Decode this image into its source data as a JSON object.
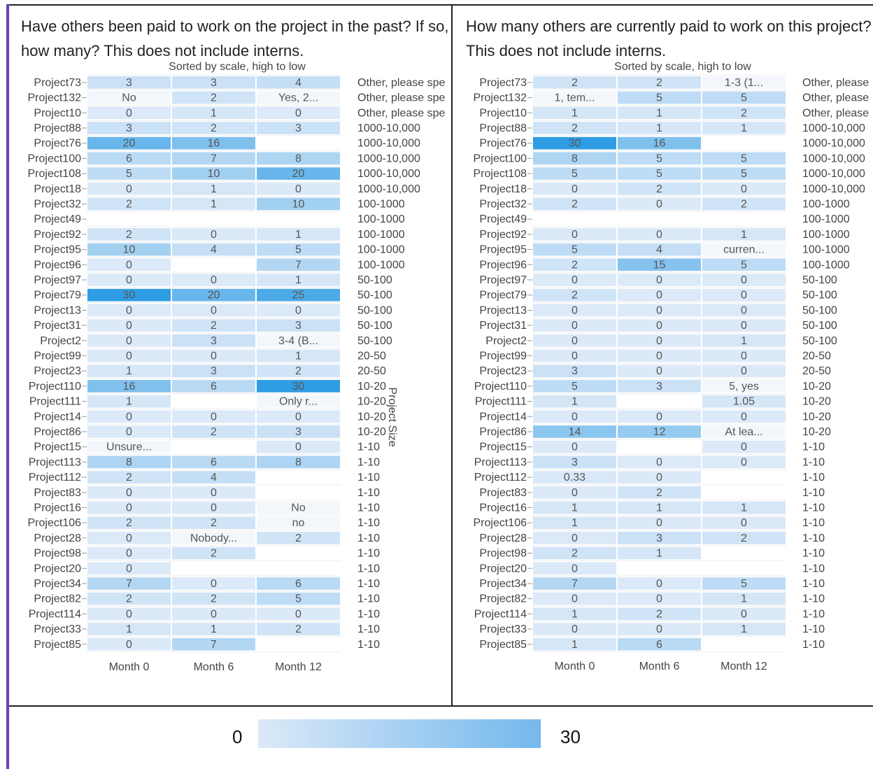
{
  "colorscale": {
    "low": "#dbe9f8",
    "high": "#2f9de4",
    "min": 0,
    "max": 30
  },
  "legend": {
    "min_label": "0",
    "max_label": "30"
  },
  "side_axis_label": "Project Size",
  "chart_data": [
    {
      "type": "heatmap",
      "title": "Have others been paid to work on the project in the past? If so, how many? This does not include interns.",
      "subtitle": "Sorted by scale, high to low",
      "columns": [
        "Month 0",
        "Month 6",
        "Month 12"
      ],
      "rows": [
        "Project73",
        "Project132",
        "Project10",
        "Project88",
        "Project76",
        "Project100",
        "Project108",
        "Project18",
        "Project32",
        "Project49",
        "Project92",
        "Project95",
        "Project96",
        "Project97",
        "Project79",
        "Project13",
        "Project31",
        "Project2",
        "Project99",
        "Project23",
        "Project110",
        "Project111",
        "Project14",
        "Project86",
        "Project15",
        "Project113",
        "Project112",
        "Project83",
        "Project16",
        "Project106",
        "Project28",
        "Project98",
        "Project20",
        "Project34",
        "Project82",
        "Project114",
        "Project33",
        "Project85"
      ],
      "cells": [
        [
          "3",
          "3",
          "4"
        ],
        [
          "No",
          "2",
          "Yes, 2..."
        ],
        [
          "0",
          "1",
          "0"
        ],
        [
          "3",
          "2",
          "3"
        ],
        [
          "20",
          "16",
          ""
        ],
        [
          "6",
          "7",
          "8"
        ],
        [
          "5",
          "10",
          "20"
        ],
        [
          "0",
          "1",
          "0"
        ],
        [
          "2",
          "1",
          "10"
        ],
        [
          "",
          "",
          ""
        ],
        [
          "2",
          "0",
          "1"
        ],
        [
          "10",
          "4",
          "5"
        ],
        [
          "0",
          "",
          "7"
        ],
        [
          "0",
          "0",
          "1"
        ],
        [
          "30",
          "20",
          "25"
        ],
        [
          "0",
          "0",
          "0"
        ],
        [
          "0",
          "2",
          "3"
        ],
        [
          "0",
          "3",
          "3-4 (B..."
        ],
        [
          "0",
          "0",
          "1"
        ],
        [
          "1",
          "3",
          "2"
        ],
        [
          "16",
          "6",
          "30"
        ],
        [
          "1",
          "",
          "Only r..."
        ],
        [
          "0",
          "0",
          "0"
        ],
        [
          "0",
          "2",
          "3"
        ],
        [
          "Unsure...",
          "",
          "0"
        ],
        [
          "8",
          "6",
          "8"
        ],
        [
          "2",
          "4",
          ""
        ],
        [
          "0",
          "0",
          ""
        ],
        [
          "0",
          "0",
          "No"
        ],
        [
          "2",
          "2",
          "no"
        ],
        [
          "0",
          "Nobody...",
          "2"
        ],
        [
          "0",
          "2",
          ""
        ],
        [
          "0",
          "",
          ""
        ],
        [
          "7",
          "0",
          "6"
        ],
        [
          "2",
          "2",
          "5"
        ],
        [
          "0",
          "0",
          "0"
        ],
        [
          "1",
          "1",
          "2"
        ],
        [
          "0",
          "7",
          ""
        ]
      ],
      "project_size": [
        "Other, please spe",
        "Other, please spe",
        "Other, please spe",
        "1000-10,000",
        "1000-10,000",
        "1000-10,000",
        "1000-10,000",
        "1000-10,000",
        "100-1000",
        "100-1000",
        "100-1000",
        "100-1000",
        "100-1000",
        "50-100",
        "50-100",
        "50-100",
        "50-100",
        "50-100",
        "20-50",
        "20-50",
        "10-20",
        "10-20",
        "10-20",
        "10-20",
        "1-10",
        "1-10",
        "1-10",
        "1-10",
        "1-10",
        "1-10",
        "1-10",
        "1-10",
        "1-10",
        "1-10",
        "1-10",
        "1-10",
        "1-10",
        "1-10"
      ]
    },
    {
      "type": "heatmap",
      "title": "How many others are currently paid to work on this project? This does not include interns.",
      "subtitle": "Sorted by scale, high to low",
      "columns": [
        "Month 0",
        "Month 6",
        "Month 12"
      ],
      "rows": [
        "Project73",
        "Project132",
        "Project10",
        "Project88",
        "Project76",
        "Project100",
        "Project108",
        "Project18",
        "Project32",
        "Project49",
        "Project92",
        "Project95",
        "Project96",
        "Project97",
        "Project79",
        "Project13",
        "Project31",
        "Project2",
        "Project99",
        "Project23",
        "Project110",
        "Project111",
        "Project14",
        "Project86",
        "Project15",
        "Project113",
        "Project112",
        "Project83",
        "Project16",
        "Project106",
        "Project28",
        "Project98",
        "Project20",
        "Project34",
        "Project82",
        "Project114",
        "Project33",
        "Project85"
      ],
      "cells": [
        [
          "2",
          "2",
          "1-3 (1..."
        ],
        [
          "1, tem...",
          "5",
          "5"
        ],
        [
          "1",
          "1",
          "2"
        ],
        [
          "2",
          "1",
          "1"
        ],
        [
          "30",
          "16",
          ""
        ],
        [
          "8",
          "5",
          "5"
        ],
        [
          "5",
          "5",
          "5"
        ],
        [
          "0",
          "2",
          "0"
        ],
        [
          "2",
          "0",
          "2"
        ],
        [
          "",
          "",
          ""
        ],
        [
          "0",
          "0",
          "1"
        ],
        [
          "5",
          "4",
          "curren..."
        ],
        [
          "2",
          "15",
          "5"
        ],
        [
          "0",
          "0",
          "0"
        ],
        [
          "2",
          "0",
          "0"
        ],
        [
          "0",
          "0",
          "0"
        ],
        [
          "0",
          "0",
          "0"
        ],
        [
          "0",
          "0",
          "1"
        ],
        [
          "0",
          "0",
          "0"
        ],
        [
          "3",
          "0",
          "0"
        ],
        [
          "5",
          "3",
          "5, yes"
        ],
        [
          "1",
          "",
          "1.05"
        ],
        [
          "0",
          "0",
          "0"
        ],
        [
          "14",
          "12",
          "At lea..."
        ],
        [
          "0",
          "",
          "0"
        ],
        [
          "3",
          "0",
          "0"
        ],
        [
          "0.33",
          "0",
          ""
        ],
        [
          "0",
          "2",
          ""
        ],
        [
          "1",
          "1",
          "1"
        ],
        [
          "1",
          "0",
          "0"
        ],
        [
          "0",
          "3",
          "2"
        ],
        [
          "2",
          "1",
          ""
        ],
        [
          "0",
          "",
          ""
        ],
        [
          "7",
          "0",
          "5"
        ],
        [
          "0",
          "0",
          "1"
        ],
        [
          "1",
          "2",
          "0"
        ],
        [
          "0",
          "0",
          "1"
        ],
        [
          "1",
          "6",
          ""
        ]
      ],
      "project_size": [
        "Other, please",
        "Other, please",
        "Other, please",
        "1000-10,000",
        "1000-10,000",
        "1000-10,000",
        "1000-10,000",
        "1000-10,000",
        "100-1000",
        "100-1000",
        "100-1000",
        "100-1000",
        "100-1000",
        "50-100",
        "50-100",
        "50-100",
        "50-100",
        "50-100",
        "20-50",
        "20-50",
        "10-20",
        "10-20",
        "10-20",
        "10-20",
        "1-10",
        "1-10",
        "1-10",
        "1-10",
        "1-10",
        "1-10",
        "1-10",
        "1-10",
        "1-10",
        "1-10",
        "1-10",
        "1-10",
        "1-10",
        "1-10"
      ]
    }
  ]
}
